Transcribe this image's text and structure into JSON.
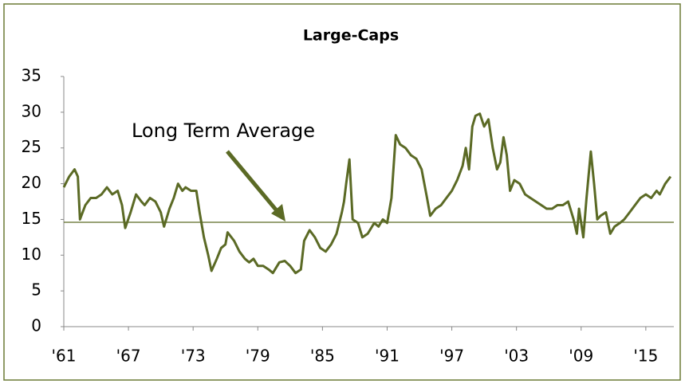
{
  "chart_data": {
    "type": "line",
    "title": "Large-Caps",
    "x": [
      1961,
      1961.5,
      1962,
      1962.3,
      1962.5,
      1963,
      1963.5,
      1964,
      1964.5,
      1965,
      1965.5,
      1966,
      1966.4,
      1966.7,
      1967.2,
      1967.7,
      1968.2,
      1968.5,
      1969,
      1969.5,
      1970,
      1970.3,
      1970.8,
      1971.2,
      1971.6,
      1972,
      1972.3,
      1972.8,
      1973.3,
      1973.6,
      1974,
      1974.4,
      1974.7,
      1975.2,
      1975.6,
      1976,
      1976.2,
      1976.8,
      1977.3,
      1977.8,
      1978.2,
      1978.6,
      1979,
      1979.5,
      1980,
      1980.4,
      1981,
      1981.5,
      1982,
      1982.5,
      1983,
      1983.3,
      1983.8,
      1984.3,
      1984.8,
      1985.3,
      1985.8,
      1986.3,
      1986.8,
      1987,
      1987.2,
      1987.5,
      1987.8,
      1988.3,
      1988.7,
      1989.2,
      1989.8,
      1990.2,
      1990.6,
      1991,
      1991.4,
      1991.8,
      1992.2,
      1992.7,
      1993.2,
      1993.7,
      1994.2,
      1994.7,
      1995,
      1995.5,
      1996,
      1996.5,
      1997,
      1997.5,
      1998,
      1998.3,
      1998.6,
      1998.9,
      1999.2,
      1999.6,
      2000,
      2000.4,
      2000.8,
      2001.2,
      2001.5,
      2001.8,
      2002.1,
      2002.4,
      2002.8,
      2003.3,
      2003.8,
      2004.3,
      2004.8,
      2005.3,
      2005.8,
      2006.3,
      2006.8,
      2007.3,
      2007.8,
      2008.3,
      2008.6,
      2008.8,
      2009.2,
      2009.5,
      2009.9,
      2010.2,
      2010.5,
      2010.8,
      2011.3,
      2011.7,
      2012.1,
      2012.6,
      2013,
      2013.5,
      2014,
      2014.5,
      2015,
      2015.5,
      2016,
      2016.3,
      2016.8,
      2017.3
    ],
    "values": [
      19.5,
      21,
      22,
      21,
      15,
      17,
      18,
      18,
      18.5,
      19.5,
      18.5,
      19,
      17,
      13.8,
      16,
      18.5,
      17.5,
      17,
      18,
      17.5,
      16,
      14,
      16.5,
      18,
      20,
      19,
      19.5,
      19,
      19,
      16,
      12.5,
      10,
      7.8,
      9.5,
      11,
      11.5,
      13.2,
      12,
      10.5,
      9.5,
      9,
      9.5,
      8.5,
      8.5,
      8,
      7.5,
      9,
      9.2,
      8.5,
      7.5,
      8,
      12,
      13.5,
      12.5,
      11,
      10.5,
      11.5,
      13,
      16,
      17.5,
      20,
      23.4,
      15,
      14.5,
      12.5,
      13,
      14.5,
      14,
      15,
      14.5,
      18,
      26.8,
      25.5,
      25,
      24,
      23.5,
      22,
      18,
      15.5,
      16.5,
      17,
      18,
      19,
      20.5,
      22.5,
      25,
      22,
      28,
      29.5,
      29.8,
      28,
      29,
      25,
      22,
      23,
      26.5,
      24,
      19,
      20.5,
      20,
      18.5,
      18,
      17.5,
      17,
      16.5,
      16.5,
      17,
      17,
      17.5,
      15,
      13,
      16.5,
      12.5,
      18,
      24.5,
      20,
      15,
      15.5,
      16,
      13,
      14,
      14.5,
      15,
      16,
      17,
      18,
      18.5,
      18,
      19,
      18.5,
      20,
      21
    ],
    "color": "#5b6a25",
    "reference_line": {
      "value": 14.6,
      "label": "Long Term Average"
    },
    "xlim": [
      1961,
      2017.6
    ],
    "xticks": [
      {
        "value": 1961,
        "label": "'61"
      },
      {
        "value": 1967,
        "label": "'67"
      },
      {
        "value": 1973,
        "label": "'73"
      },
      {
        "value": 1979,
        "label": "'79"
      },
      {
        "value": 1985,
        "label": "'85"
      },
      {
        "value": 1991,
        "label": "'91"
      },
      {
        "value": 1997,
        "label": "'97"
      },
      {
        "value": 2003,
        "label": "'03"
      },
      {
        "value": 2009,
        "label": "'09"
      },
      {
        "value": 2015,
        "label": "'15"
      }
    ],
    "ylim": [
      0,
      35
    ],
    "yticks": [
      0,
      5,
      10,
      15,
      20,
      25,
      30,
      35
    ],
    "grid": false
  }
}
